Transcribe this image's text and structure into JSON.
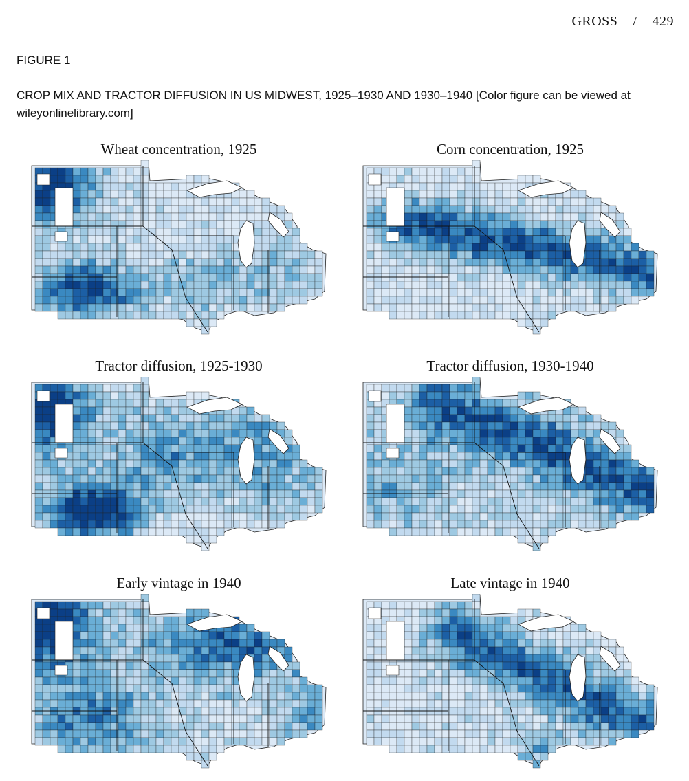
{
  "header": {
    "author": "GROSS",
    "separator": "/",
    "page": "429"
  },
  "figure": {
    "label": "FIGURE 1",
    "caption": "CROP MIX AND TRACTOR DIFFUSION IN US MIDWEST, 1925–1930 AND 1930–1940 [Color figure can be viewed at wileyonlinelibrary.com]"
  },
  "colors": {
    "c1": "#dce9f6",
    "c2": "#c2daef",
    "c3": "#9ec9e2",
    "c4": "#6aaed6",
    "c5": "#3a89c1",
    "c6": "#1c5fa5",
    "c7": "#0b3f86",
    "border": "#222222",
    "lake": "#ffffff"
  },
  "panels": [
    {
      "id": "wheat-1925",
      "title": "Wheat concentration, 1925",
      "pattern": "wheat"
    },
    {
      "id": "corn-1925",
      "title": "Corn concentration, 1925",
      "pattern": "corn"
    },
    {
      "id": "tractor-1925-1930",
      "title": "Tractor diffusion, 1925-1930",
      "pattern": "tractor_early"
    },
    {
      "id": "tractor-1930-1940",
      "title": "Tractor diffusion, 1930-1940",
      "pattern": "tractor_late"
    },
    {
      "id": "early-vintage-1940",
      "title": "Early vintage in 1940",
      "pattern": "early_vintage"
    },
    {
      "id": "late-vintage-1940",
      "title": "Late vintage in 1940",
      "pattern": "late_vintage"
    }
  ]
}
